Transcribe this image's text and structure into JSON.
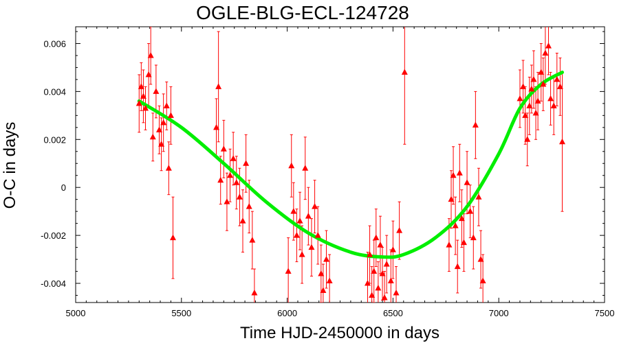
{
  "chart_data": {
    "type": "scatter",
    "title": "OGLE-BLG-ECL-124728",
    "xlabel": "Time HJD-2450000 in days",
    "ylabel": "O-C in days",
    "xlim": [
      5000,
      7500
    ],
    "ylim": [
      -0.0048,
      0.0067
    ],
    "x_ticks": [
      5000,
      5500,
      6000,
      6500,
      7000,
      7500
    ],
    "x_tick_labels": [
      "5000",
      "5500",
      "6000",
      "6500",
      "7000",
      "7500"
    ],
    "y_ticks": [
      -0.004,
      -0.002,
      0,
      0.002,
      0.004,
      0.006
    ],
    "y_tick_labels": [
      "-0.004",
      "-0.002",
      "0",
      "0.002",
      "0.004",
      "0.006"
    ],
    "grid": false,
    "legend": false,
    "colors": {
      "points": "#ff0000",
      "fit": "#00ee00",
      "axes": "#000000"
    },
    "series": [
      {
        "kind": "points-with-errorbars",
        "points": [
          {
            "x": 5300,
            "y": 0.0035,
            "err": 0.0012
          },
          {
            "x": 5310,
            "y": 0.0042,
            "err": 0.001
          },
          {
            "x": 5320,
            "y": 0.0038,
            "err": 0.0011
          },
          {
            "x": 5330,
            "y": 0.0033,
            "err": 0.0009
          },
          {
            "x": 5345,
            "y": 0.0047,
            "err": 0.0013
          },
          {
            "x": 5355,
            "y": 0.0055,
            "err": 0.0012
          },
          {
            "x": 5365,
            "y": 0.0021,
            "err": 0.001
          },
          {
            "x": 5380,
            "y": 0.004,
            "err": 0.0011
          },
          {
            "x": 5395,
            "y": 0.0024,
            "err": 0.001
          },
          {
            "x": 5405,
            "y": 0.0018,
            "err": 0.0011
          },
          {
            "x": 5415,
            "y": 0.0027,
            "err": 0.0012
          },
          {
            "x": 5430,
            "y": 0.0034,
            "err": 0.001
          },
          {
            "x": 5440,
            "y": 0.0008,
            "err": 0.0011
          },
          {
            "x": 5450,
            "y": 0.003,
            "err": 0.0012
          },
          {
            "x": 5460,
            "y": -0.0021,
            "err": 0.0017
          },
          {
            "x": 5665,
            "y": 0.0025,
            "err": 0.0012
          },
          {
            "x": 5675,
            "y": 0.0042,
            "err": 0.0023
          },
          {
            "x": 5685,
            "y": 0.0003,
            "err": 0.001
          },
          {
            "x": 5700,
            "y": 0.0016,
            "err": 0.0012
          },
          {
            "x": 5715,
            "y": -0.0006,
            "err": 0.0012
          },
          {
            "x": 5730,
            "y": 0.0005,
            "err": 0.0011
          },
          {
            "x": 5745,
            "y": 0.0012,
            "err": 0.0011
          },
          {
            "x": 5760,
            "y": 0.0002,
            "err": 0.0011
          },
          {
            "x": 5775,
            "y": -0.0004,
            "err": 0.0012
          },
          {
            "x": 5790,
            "y": -0.0014,
            "err": 0.0013
          },
          {
            "x": 5805,
            "y": 0.001,
            "err": 0.0012
          },
          {
            "x": 5820,
            "y": -0.0008,
            "err": 0.0011
          },
          {
            "x": 5835,
            "y": -0.0022,
            "err": 0.0012
          },
          {
            "x": 5845,
            "y": -0.0044,
            "err": 0.001
          },
          {
            "x": 6005,
            "y": -0.0035,
            "err": 0.0014
          },
          {
            "x": 6020,
            "y": 0.0009,
            "err": 0.0013
          },
          {
            "x": 6030,
            "y": -0.001,
            "err": 0.0012
          },
          {
            "x": 6045,
            "y": -0.002,
            "err": 0.0011
          },
          {
            "x": 6060,
            "y": -0.0014,
            "err": 0.0012
          },
          {
            "x": 6070,
            "y": -0.0028,
            "err": 0.0012
          },
          {
            "x": 6085,
            "y": 0.0008,
            "err": 0.0013
          },
          {
            "x": 6100,
            "y": -0.0012,
            "err": 0.0012
          },
          {
            "x": 6115,
            "y": -0.0025,
            "err": 0.0012
          },
          {
            "x": 6130,
            "y": -0.0008,
            "err": 0.0011
          },
          {
            "x": 6145,
            "y": -0.002,
            "err": 0.0012
          },
          {
            "x": 6160,
            "y": -0.0036,
            "err": 0.0012
          },
          {
            "x": 6170,
            "y": -0.0043,
            "err": 0.0011
          },
          {
            "x": 6185,
            "y": -0.003,
            "err": 0.0012
          },
          {
            "x": 6200,
            "y": -0.0039,
            "err": 0.0011
          },
          {
            "x": 6380,
            "y": -0.004,
            "err": 0.0013
          },
          {
            "x": 6390,
            "y": -0.0028,
            "err": 0.0012
          },
          {
            "x": 6400,
            "y": -0.0045,
            "err": 0.0012
          },
          {
            "x": 6410,
            "y": -0.0035,
            "err": 0.0013
          },
          {
            "x": 6420,
            "y": -0.0021,
            "err": 0.0012
          },
          {
            "x": 6430,
            "y": -0.0042,
            "err": 0.0011
          },
          {
            "x": 6440,
            "y": -0.0024,
            "err": 0.0012
          },
          {
            "x": 6450,
            "y": -0.0036,
            "err": 0.0011
          },
          {
            "x": 6460,
            "y": -0.0046,
            "err": 0.0011
          },
          {
            "x": 6470,
            "y": -0.0032,
            "err": 0.0012
          },
          {
            "x": 6490,
            "y": -0.0039,
            "err": 0.0013
          },
          {
            "x": 6500,
            "y": -0.0026,
            "err": 0.0012
          },
          {
            "x": 6515,
            "y": -0.0044,
            "err": 0.0011
          },
          {
            "x": 6530,
            "y": -0.0018,
            "err": 0.0012
          },
          {
            "x": 6555,
            "y": 0.0048,
            "err": 0.003
          },
          {
            "x": 6765,
            "y": -0.0024,
            "err": 0.0011
          },
          {
            "x": 6775,
            "y": -0.0005,
            "err": 0.0012
          },
          {
            "x": 6785,
            "y": 0.0005,
            "err": 0.0012
          },
          {
            "x": 6795,
            "y": -0.0016,
            "err": 0.0012
          },
          {
            "x": 6805,
            "y": -0.0033,
            "err": 0.0011
          },
          {
            "x": 6815,
            "y": 0.0006,
            "err": 0.0012
          },
          {
            "x": 6825,
            "y": -0.0013,
            "err": 0.0012
          },
          {
            "x": 6835,
            "y": -0.0023,
            "err": 0.0012
          },
          {
            "x": 6850,
            "y": 0.0002,
            "err": 0.0013
          },
          {
            "x": 6865,
            "y": -0.001,
            "err": 0.0011
          },
          {
            "x": 6880,
            "y": -0.0021,
            "err": 0.0013
          },
          {
            "x": 6890,
            "y": 0.0026,
            "err": 0.0014
          },
          {
            "x": 6905,
            "y": -0.0004,
            "err": 0.0012
          },
          {
            "x": 6915,
            "y": -0.003,
            "err": 0.0012
          },
          {
            "x": 6925,
            "y": -0.0039,
            "err": 0.0011
          },
          {
            "x": 7100,
            "y": 0.0037,
            "err": 0.0012
          },
          {
            "x": 7115,
            "y": 0.0042,
            "err": 0.0011
          },
          {
            "x": 7125,
            "y": 0.003,
            "err": 0.0012
          },
          {
            "x": 7135,
            "y": 0.002,
            "err": 0.0011
          },
          {
            "x": 7145,
            "y": 0.0034,
            "err": 0.0012
          },
          {
            "x": 7155,
            "y": 0.0041,
            "err": 0.001
          },
          {
            "x": 7165,
            "y": 0.0045,
            "err": 0.0012
          },
          {
            "x": 7175,
            "y": 0.0031,
            "err": 0.0011
          },
          {
            "x": 7185,
            "y": 0.0036,
            "err": 0.0012
          },
          {
            "x": 7200,
            "y": 0.0048,
            "err": 0.0012
          },
          {
            "x": 7210,
            "y": 0.0043,
            "err": 0.0011
          },
          {
            "x": 7220,
            "y": 0.0056,
            "err": 0.0013
          },
          {
            "x": 7235,
            "y": 0.0059,
            "err": 0.0012
          },
          {
            "x": 7245,
            "y": 0.0037,
            "err": 0.0011
          },
          {
            "x": 7260,
            "y": 0.0034,
            "err": 0.0012
          },
          {
            "x": 7275,
            "y": 0.0045,
            "err": 0.0011
          },
          {
            "x": 7290,
            "y": 0.0042,
            "err": 0.0012
          },
          {
            "x": 7300,
            "y": 0.0019,
            "err": 0.0029
          }
        ]
      },
      {
        "kind": "fit-curve",
        "points": [
          {
            "x": 5300,
            "y": 0.0036
          },
          {
            "x": 5500,
            "y": 0.0025
          },
          {
            "x": 5700,
            "y": 0.001
          },
          {
            "x": 5900,
            "y": -0.0006
          },
          {
            "x": 6100,
            "y": -0.0019
          },
          {
            "x": 6300,
            "y": -0.0027
          },
          {
            "x": 6450,
            "y": -0.0029
          },
          {
            "x": 6550,
            "y": -0.0028
          },
          {
            "x": 6700,
            "y": -0.0021
          },
          {
            "x": 6850,
            "y": -0.0008
          },
          {
            "x": 7000,
            "y": 0.0014
          },
          {
            "x": 7100,
            "y": 0.0033
          },
          {
            "x": 7200,
            "y": 0.0043
          },
          {
            "x": 7300,
            "y": 0.0048
          }
        ]
      }
    ]
  }
}
